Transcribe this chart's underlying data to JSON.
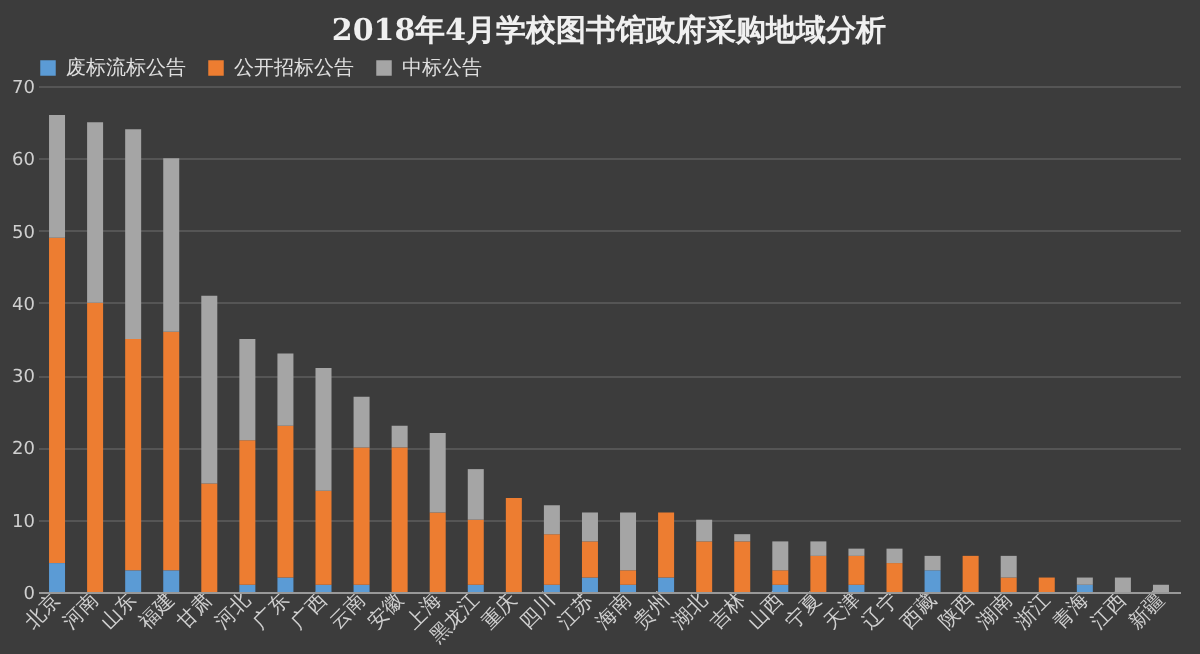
{
  "chart_data": {
    "type": "bar",
    "title": "2018年4月学校图书馆政府采购地域分析",
    "stacked": true,
    "legend": "top",
    "grid": "y",
    "categories": [
      "北京",
      "河南",
      "山东",
      "福建",
      "甘肃",
      "河北",
      "广东",
      "广西",
      "云南",
      "安徽",
      "上海",
      "黑龙江",
      "重庆",
      "四川",
      "江苏",
      "海南",
      "贵州",
      "湖北",
      "吉林",
      "山西",
      "宁夏",
      "天津",
      "辽宁",
      "西藏",
      "陕西",
      "湖南",
      "浙江",
      "青海",
      "江西",
      "新疆"
    ],
    "ylim": [
      0,
      70
    ],
    "yticks": [
      0,
      10,
      20,
      30,
      40,
      50,
      60,
      70
    ],
    "series": [
      {
        "name": "废标流标公告",
        "color": "#5b9bd5",
        "values": [
          4,
          0,
          3,
          3,
          0,
          1,
          2,
          1,
          1,
          0,
          0,
          1,
          0,
          1,
          2,
          1,
          2,
          0,
          0,
          1,
          0,
          1,
          0,
          3,
          0,
          0,
          0,
          1,
          0,
          0
        ]
      },
      {
        "name": "公开招标公告",
        "color": "#ed7d31",
        "values": [
          45,
          40,
          32,
          33,
          15,
          20,
          21,
          13,
          19,
          20,
          11,
          9,
          13,
          7,
          5,
          2,
          9,
          7,
          7,
          2,
          5,
          4,
          4,
          0,
          5,
          2,
          2,
          0,
          0,
          0
        ]
      },
      {
        "name": "中标公告",
        "color": "#a5a5a5",
        "values": [
          17,
          25,
          29,
          24,
          26,
          14,
          10,
          17,
          7,
          3,
          11,
          7,
          0,
          4,
          4,
          8,
          0,
          3,
          1,
          4,
          2,
          1,
          2,
          2,
          0,
          3,
          0,
          1,
          2,
          1
        ]
      }
    ]
  }
}
